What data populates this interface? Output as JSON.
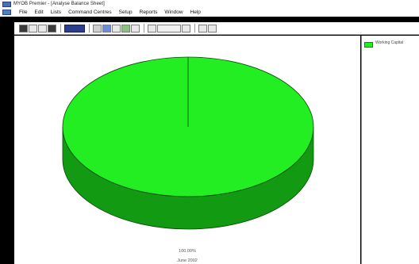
{
  "window": {
    "title": "MYOB Premier - [Analyse Balance Sheet]"
  },
  "menu": {
    "items": [
      "File",
      "Edit",
      "Lists",
      "Command Centres",
      "Setup",
      "Reports",
      "Window",
      "Help"
    ]
  },
  "toolbar": {
    "buttons": [
      "save-icon",
      "print-icon",
      "zoom-icon",
      "options-icon",
      "color-picker",
      "chart-type-icon",
      "pie-icon",
      "bar-icon",
      "line-icon",
      "table-icon",
      "area-icon",
      "stack-icon",
      "3d-icon",
      "grid-icon",
      "filter-icon"
    ]
  },
  "chart_data": {
    "type": "pie",
    "categories": [
      "Working Capital"
    ],
    "values": [
      100.0
    ],
    "value_label": "100.00%",
    "caption": "June 2002",
    "legend_position": "right",
    "colors": {
      "slice": "#22ee22",
      "side": "#129a12"
    }
  },
  "legend": {
    "label": "Working Capital"
  }
}
